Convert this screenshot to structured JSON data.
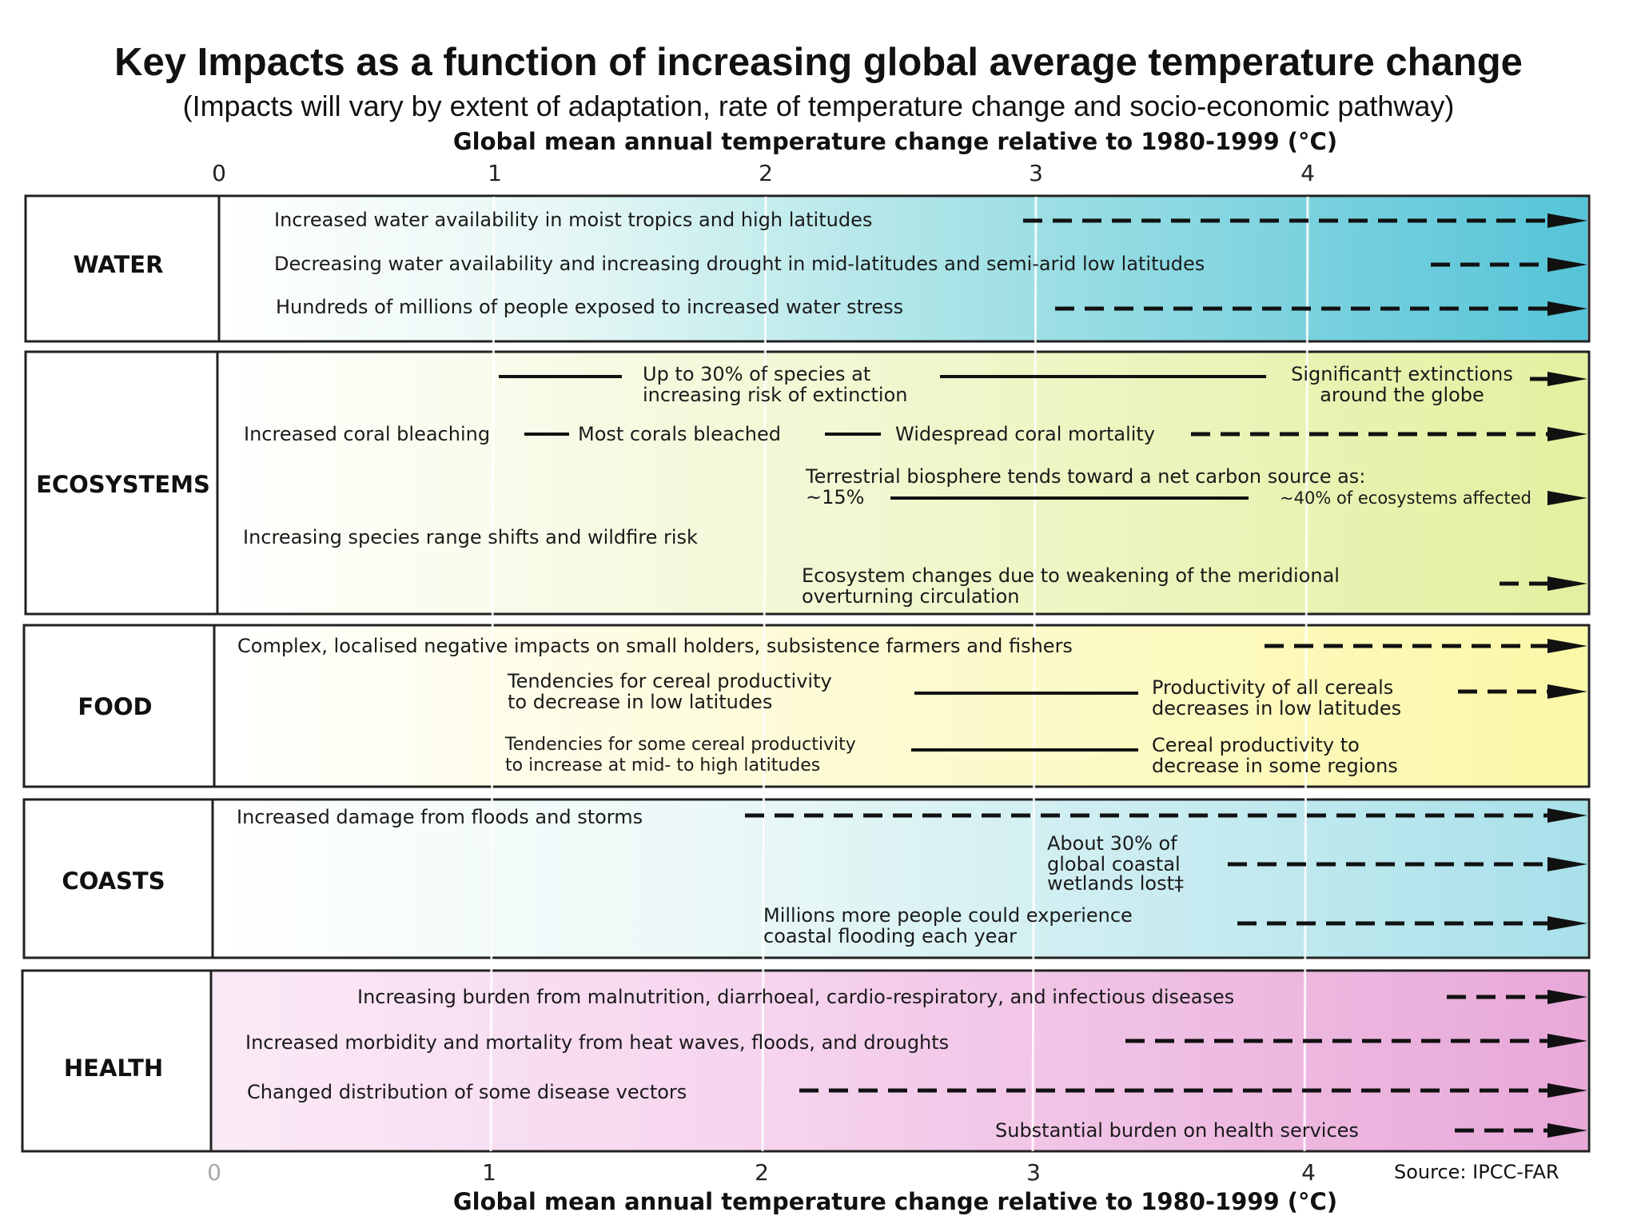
{
  "header": {
    "title": "Key Impacts as a function of increasing global average temperature change",
    "subtitle": "(Impacts will vary by extent of adaptation, rate of temperature change and socio-economic pathway)"
  },
  "axis": {
    "title": "Global mean annual temperature change relative to 1980-1999 (°C)",
    "ticks": [
      "0",
      "1",
      "2",
      "3",
      "4"
    ]
  },
  "source": "Source: IPCC-FAR",
  "colors": {
    "water": "#56c4d8",
    "ecosystems": "#e4f0a0",
    "food": "#fbf8a8",
    "coasts": "#a8e0ea",
    "health": "#e8a8d8"
  },
  "categories": [
    {
      "name": "WATER",
      "impacts": [
        "Increased water availability in moist tropics and high latitudes",
        "Decreasing water availability and increasing drought in mid-latitudes and semi-arid low latitudes",
        "Hundreds of millions of people exposed to increased water stress"
      ]
    },
    {
      "name": "ECOSYSTEMS",
      "impacts": [
        "Up to 30% of species at",
        "increasing risk of extinction",
        "Significant† extinctions",
        "around the globe",
        "Increased coral bleaching",
        "Most corals bleached",
        "Widespread coral mortality",
        "Terrestrial biosphere tends toward a net carbon source as:",
        "~15%",
        "~40% of ecosystems affected",
        "Increasing species range shifts and wildfire risk",
        "Ecosystem changes due to weakening of the meridional",
        "overturning circulation"
      ]
    },
    {
      "name": "FOOD",
      "impacts": [
        "Complex, localised negative impacts on small holders, subsistence farmers and fishers",
        "Tendencies for cereal productivity",
        "to decrease in low latitudes",
        "Productivity of all cereals",
        "decreases in low latitudes",
        "Tendencies for some cereal productivity",
        "to increase at mid- to high latitudes",
        "Cereal productivity to",
        "decrease in some regions"
      ]
    },
    {
      "name": "COASTS",
      "impacts": [
        "Increased damage from floods and storms",
        "About 30% of",
        "global coastal",
        "wetlands lost‡",
        "Millions more people could experience",
        "coastal flooding each year"
      ]
    },
    {
      "name": "HEALTH",
      "impacts": [
        "Increasing burden from malnutrition, diarrhoeal, cardio-respiratory, and infectious diseases",
        "Increased morbidity and mortality from heat waves, floods, and droughts",
        "Changed distribution of some disease vectors",
        "Substantial burden on health services"
      ]
    }
  ]
}
